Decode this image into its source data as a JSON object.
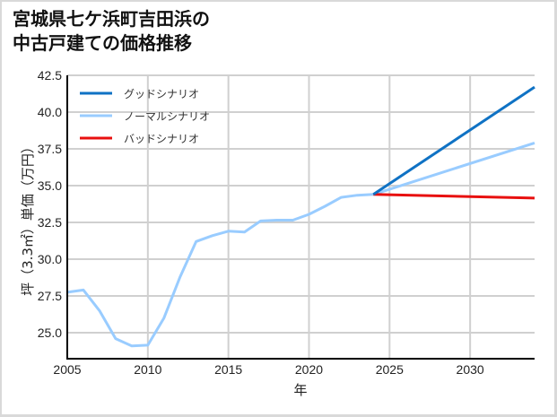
{
  "chart_data": {
    "type": "line",
    "title": "宮城県七ケ浜町吉田浜の中古戸建ての価格推移",
    "title_lines": [
      "宮城県七ケ浜町吉田浜の",
      "中古戸建ての価格推移"
    ],
    "xlabel": "年",
    "ylabel": "坪（3.3㎡）単価（万円）",
    "xlim": [
      2005,
      2034
    ],
    "ylim": [
      23.2,
      42.5
    ],
    "x_ticks": [
      2005,
      2010,
      2015,
      2020,
      2025,
      2030
    ],
    "y_ticks": [
      25.0,
      27.5,
      30.0,
      32.5,
      35.0,
      37.5,
      40.0,
      42.5
    ],
    "y_tick_labels": [
      "25.0",
      "27.5",
      "30.0",
      "32.5",
      "35.0",
      "37.5",
      "40.0",
      "42.5"
    ],
    "grid": true,
    "legend_position": "upper left",
    "series": [
      {
        "name": "グッドシナリオ",
        "color": "#0f72c4",
        "x": [
          2024,
          2034
        ],
        "values": [
          34.4,
          41.7
        ]
      },
      {
        "name": "ノーマルシナリオ",
        "color": "#99ccff",
        "x": [
          2005,
          2006,
          2007,
          2008,
          2009,
          2010,
          2011,
          2012,
          2013,
          2014,
          2015,
          2016,
          2017,
          2018,
          2019,
          2020,
          2021,
          2022,
          2023,
          2024,
          2034
        ],
        "values": [
          27.75,
          27.9,
          26.5,
          24.6,
          24.1,
          24.15,
          26.0,
          28.8,
          31.2,
          31.6,
          31.9,
          31.85,
          32.6,
          32.65,
          32.65,
          33.05,
          33.6,
          34.2,
          34.35,
          34.4,
          37.9
        ]
      },
      {
        "name": "バッドシナリオ",
        "color": "#e8100f",
        "x": [
          2024,
          2034
        ],
        "values": [
          34.4,
          34.15
        ]
      }
    ]
  }
}
